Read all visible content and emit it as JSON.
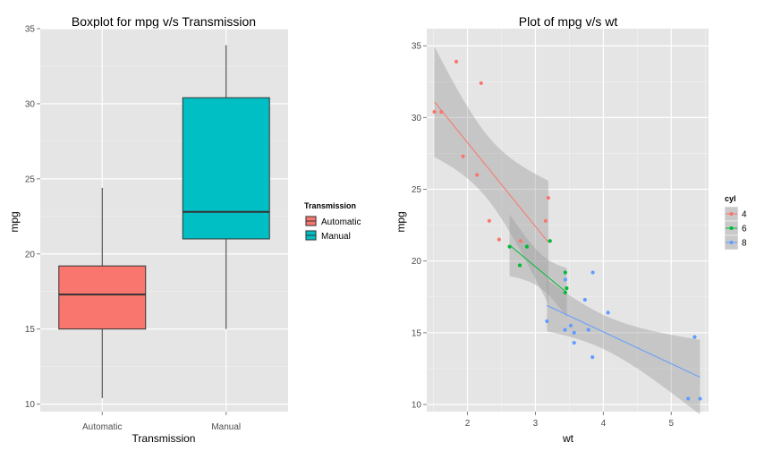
{
  "chart_data": [
    {
      "type": "boxplot",
      "title": "Boxplot for mpg v/s Transmission",
      "xlabel": "Transmission",
      "ylabel": "mpg",
      "ylim": [
        9.5,
        35
      ],
      "yticks": [
        "10",
        "15",
        "20",
        "25",
        "30",
        "35"
      ],
      "categories": [
        "Automatic",
        "Manual"
      ],
      "boxes": [
        {
          "name": "Automatic",
          "min": 10.4,
          "q1": 15.0,
          "median": 17.3,
          "q3": 19.2,
          "max": 24.4,
          "color": "#F8766D"
        },
        {
          "name": "Manual",
          "min": 15.0,
          "q1": 21.0,
          "median": 22.8,
          "q3": 30.4,
          "max": 33.9,
          "color": "#00BFC4"
        }
      ],
      "legend": {
        "title": "Transmission",
        "entries": [
          "Automatic",
          "Manual"
        ]
      },
      "grid": true
    },
    {
      "type": "scatter",
      "title": "Plot of mpg v/s wt",
      "xlabel": "wt",
      "ylabel": "mpg",
      "xlim": [
        1.4,
        5.55
      ],
      "ylim": [
        9.5,
        36.2
      ],
      "xticks": [
        "2",
        "3",
        "4",
        "5"
      ],
      "yticks": [
        "10",
        "15",
        "20",
        "25",
        "30",
        "35"
      ],
      "legend": {
        "title": "cyl",
        "entries": [
          "4",
          "6",
          "8"
        ]
      },
      "grid": true,
      "series": [
        {
          "name": "4",
          "color": "#F8766D",
          "points": [
            [
              2.32,
              22.8
            ],
            [
              3.19,
              24.4
            ],
            [
              3.15,
              22.8
            ],
            [
              2.2,
              32.4
            ],
            [
              1.615,
              30.4
            ],
            [
              1.835,
              33.9
            ],
            [
              2.465,
              21.5
            ],
            [
              1.935,
              27.3
            ],
            [
              2.14,
              26.0
            ],
            [
              1.513,
              30.4
            ],
            [
              2.78,
              21.4
            ]
          ],
          "fit": {
            "x": [
              1.513,
              3.19
            ],
            "y": [
              31.1,
              21.3
            ]
          }
        },
        {
          "name": "6",
          "color": "#00BA38",
          "points": [
            [
              2.62,
              21.0
            ],
            [
              2.875,
              21.0
            ],
            [
              3.215,
              21.4
            ],
            [
              3.46,
              18.1
            ],
            [
              3.44,
              19.2
            ],
            [
              3.44,
              17.8
            ],
            [
              2.77,
              19.7
            ]
          ],
          "fit": {
            "x": [
              2.62,
              3.46
            ],
            "y": [
              21.1,
              17.8
            ]
          }
        },
        {
          "name": "8",
          "color": "#619CFF",
          "points": [
            [
              3.44,
              18.7
            ],
            [
              3.57,
              14.3
            ],
            [
              4.07,
              16.4
            ],
            [
              3.73,
              17.3
            ],
            [
              3.78,
              15.2
            ],
            [
              5.25,
              10.4
            ],
            [
              5.424,
              10.4
            ],
            [
              5.345,
              14.7
            ],
            [
              3.52,
              15.5
            ],
            [
              3.435,
              15.2
            ],
            [
              3.84,
              13.3
            ],
            [
              3.845,
              19.2
            ],
            [
              3.17,
              15.8
            ],
            [
              3.57,
              15.0
            ]
          ],
          "fit": {
            "x": [
              3.17,
              5.424
            ],
            "y": [
              16.9,
              11.9
            ]
          }
        }
      ]
    }
  ]
}
